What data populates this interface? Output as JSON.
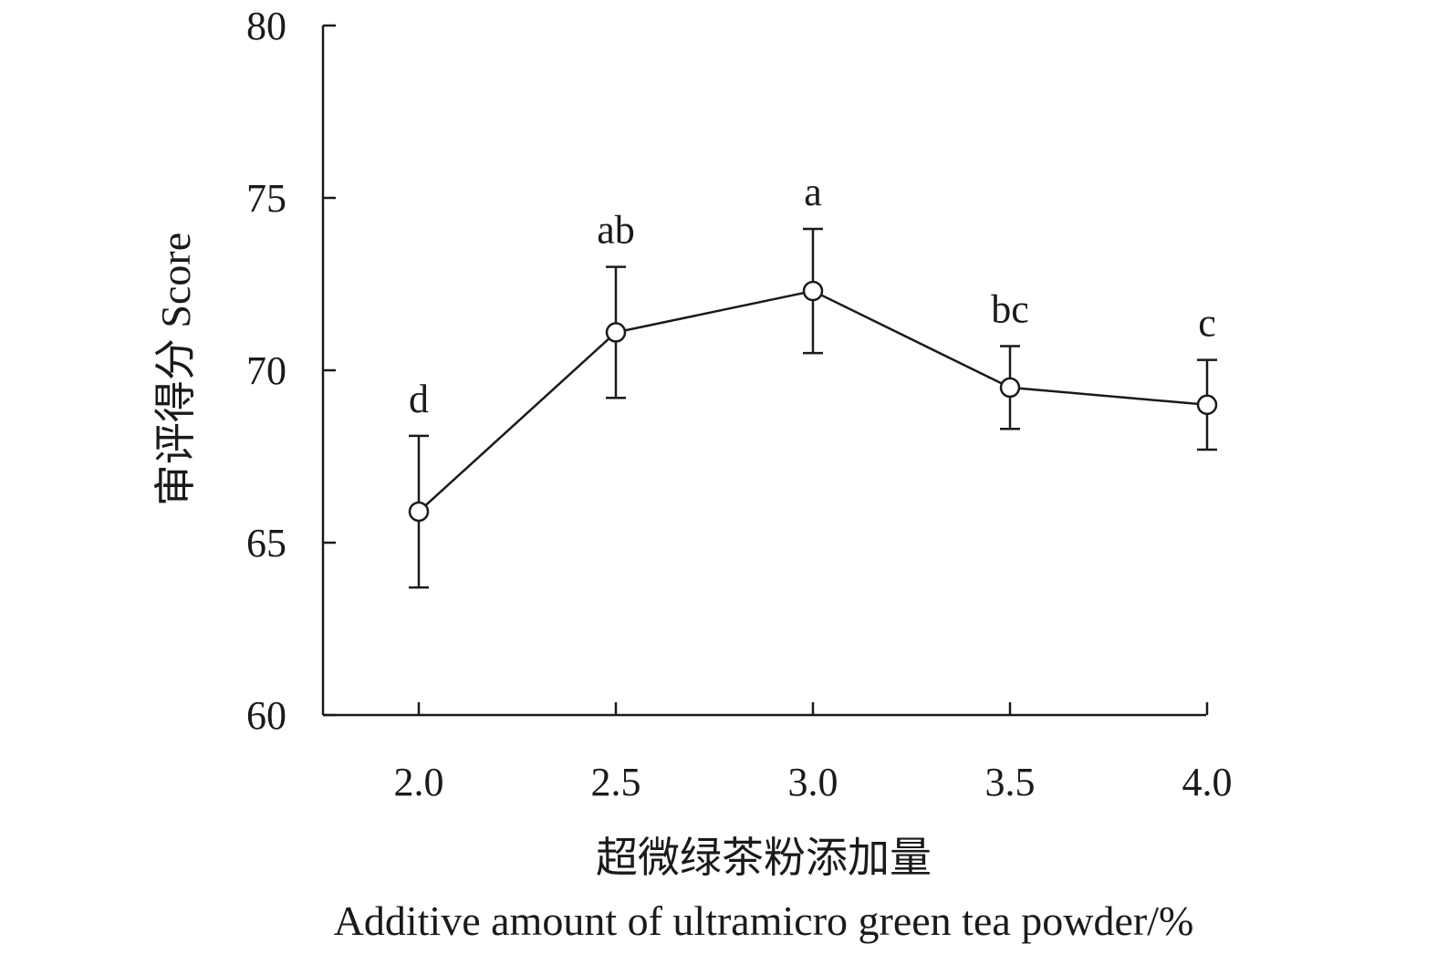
{
  "chart_data": {
    "type": "line",
    "title": "",
    "xlabel_cn": "超微绿茶粉添加量",
    "xlabel_en": "Additive amount of ultramicro green tea powder/%",
    "ylabel": "审评得分 Score",
    "x": [
      2.0,
      2.5,
      3.0,
      3.5,
      4.0
    ],
    "x_tick_labels": [
      "2.0",
      "2.5",
      "3.0",
      "3.5",
      "4.0"
    ],
    "ylim": [
      60,
      80
    ],
    "y_ticks": [
      60,
      65,
      70,
      75,
      80
    ],
    "y_tick_labels": [
      "60",
      "65",
      "70",
      "75",
      "80"
    ],
    "series": [
      {
        "values": [
          65.9,
          71.1,
          72.3,
          69.5,
          69.0
        ],
        "error": [
          2.2,
          1.9,
          1.8,
          1.2,
          1.3
        ],
        "letters": [
          "d",
          "ab",
          "a",
          "bc",
          "c"
        ],
        "marker": "open-circle",
        "color": "#1a1a1a"
      }
    ],
    "grid": false,
    "legend": "none"
  }
}
